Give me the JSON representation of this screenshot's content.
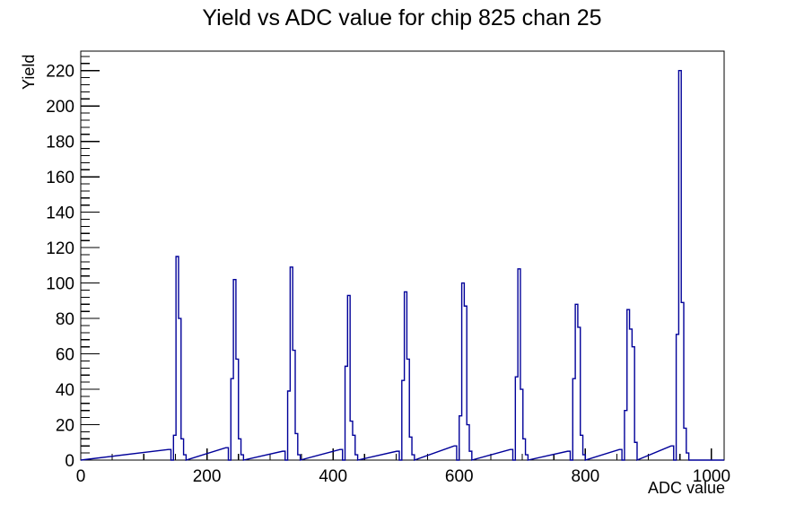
{
  "chart_data": {
    "type": "bar",
    "title": "Yield vs ADC value for chip 825 chan 25",
    "xlabel": "ADC value",
    "ylabel": "Yield",
    "xlim": [
      0,
      1020
    ],
    "ylim": [
      0,
      231
    ],
    "grid": false,
    "legend": "none",
    "background": "#ffffff",
    "axis_color": "#000000",
    "line_color": "#000099",
    "x_major_ticks": [
      0,
      200,
      400,
      600,
      800,
      1000
    ],
    "x_minor_step": 50,
    "y_major_ticks": [
      0,
      20,
      40,
      60,
      80,
      100,
      120,
      140,
      160,
      180,
      200,
      220
    ],
    "y_minor_step": 4,
    "bin_width": 4,
    "peaks_note": "narrow histogram spikes; bins[] are yields for 7 consecutive 4-ADC-wide bins starting at center-14, main spike is bin index 3",
    "peaks": [
      {
        "center": 153,
        "main_height": 115,
        "bins": [
          6,
          0,
          14,
          115,
          80,
          12,
          3
        ]
      },
      {
        "center": 244,
        "main_height": 102,
        "bins": [
          7,
          0,
          46,
          102,
          57,
          12,
          3
        ]
      },
      {
        "center": 334,
        "main_height": 109,
        "bins": [
          5,
          0,
          39,
          109,
          62,
          15,
          3
        ]
      },
      {
        "center": 425,
        "main_height": 93,
        "bins": [
          6,
          0,
          53,
          93,
          22,
          14,
          3
        ]
      },
      {
        "center": 515,
        "main_height": 95,
        "bins": [
          5,
          0,
          45,
          95,
          57,
          13,
          3
        ]
      },
      {
        "center": 606,
        "main_height": 100,
        "bins": [
          8,
          0,
          25,
          100,
          87,
          20,
          5
        ]
      },
      {
        "center": 695,
        "main_height": 108,
        "bins": [
          6,
          0,
          47,
          108,
          40,
          12,
          3
        ]
      },
      {
        "center": 786,
        "main_height": 88,
        "bins": [
          5,
          0,
          46,
          88,
          75,
          14,
          3
        ]
      },
      {
        "center": 868,
        "main_height": 85,
        "bins": [
          6,
          0,
          28,
          85,
          74,
          64,
          10
        ]
      },
      {
        "center": 950,
        "main_height": 220,
        "bins": [
          8,
          0,
          71,
          220,
          89,
          18,
          4
        ]
      }
    ]
  }
}
